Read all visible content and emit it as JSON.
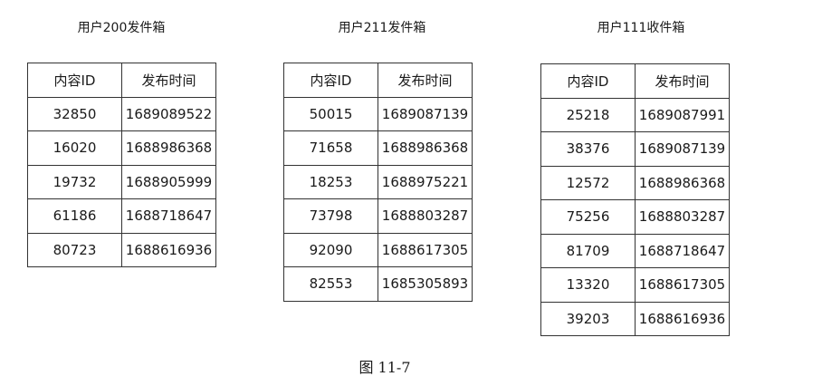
{
  "tables": [
    {
      "title": "用户200发件箱",
      "headers": [
        "内容ID",
        "发布时间"
      ],
      "rows": [
        [
          "32850",
          "1689089522"
        ],
        [
          "16020",
          "1688986368"
        ],
        [
          "19732",
          "1688905999"
        ],
        [
          "61186",
          "1688718647"
        ],
        [
          "80723",
          "1688616936"
        ]
      ]
    },
    {
      "title": "用户211发件箱",
      "headers": [
        "内容ID",
        "发布时间"
      ],
      "rows": [
        [
          "50015",
          "1689087139"
        ],
        [
          "71658",
          "1688986368"
        ],
        [
          "18253",
          "1688975221"
        ],
        [
          "73798",
          "1688803287"
        ],
        [
          "92090",
          "1688617305"
        ],
        [
          "82553",
          "1685305893"
        ]
      ]
    },
    {
      "title": "用户111收件箱",
      "headers": [
        "内容ID",
        "发布时间"
      ],
      "rows": [
        [
          "25218",
          "1689087991"
        ],
        [
          "38376",
          "1689087139"
        ],
        [
          "12572",
          "1688986368"
        ],
        [
          "75256",
          "1688803287"
        ],
        [
          "81709",
          "1688718647"
        ],
        [
          "13320",
          "1688617305"
        ],
        [
          "39203",
          "1688616936"
        ]
      ]
    }
  ],
  "caption": "图 11-7"
}
